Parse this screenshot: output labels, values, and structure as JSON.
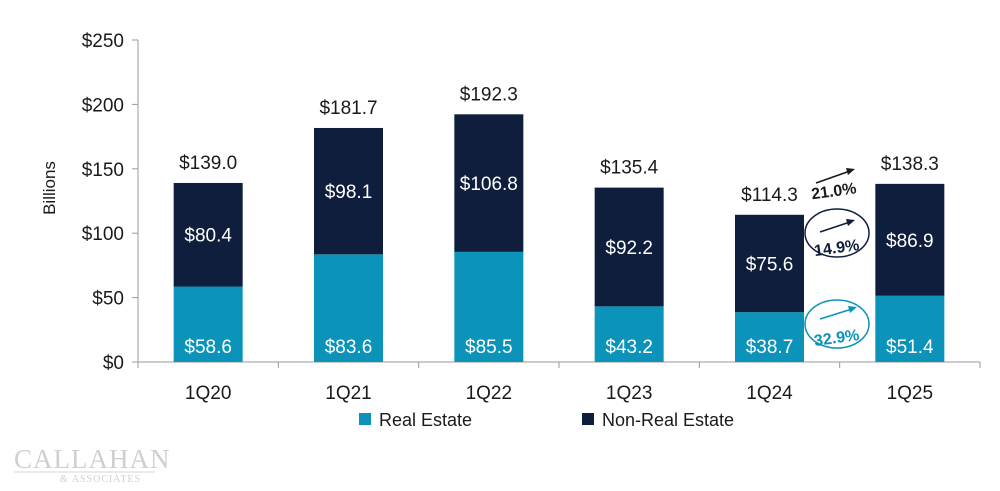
{
  "chart_data": {
    "type": "bar",
    "stacked": true,
    "categories": [
      "1Q20",
      "1Q21",
      "1Q22",
      "1Q23",
      "1Q24",
      "1Q25"
    ],
    "series": [
      {
        "name": "Real Estate",
        "color": "#0B93BA",
        "values": [
          58.6,
          83.6,
          85.5,
          43.2,
          38.7,
          51.4
        ],
        "labels": [
          "$58.6",
          "$83.6",
          "$85.5",
          "$43.2",
          "$38.7",
          "$51.4"
        ]
      },
      {
        "name": "Non-Real Estate",
        "color": "#0F1E3C",
        "values": [
          80.4,
          98.1,
          106.8,
          92.2,
          75.6,
          86.9
        ],
        "labels": [
          "$80.4",
          "$98.1",
          "$106.8",
          "$92.2",
          "$75.6",
          "$86.9"
        ]
      }
    ],
    "totals": [
      139.0,
      181.7,
      192.3,
      135.4,
      114.3,
      138.3
    ],
    "total_labels": [
      "$139.0",
      "$181.7",
      "$192.3",
      "$135.4",
      "$114.3",
      "$138.3"
    ],
    "ylabel": "Billions",
    "ylim": [
      0,
      250
    ],
    "yticks": [
      0,
      50,
      100,
      150,
      200,
      250
    ],
    "ytick_labels": [
      "$0",
      "$50",
      "$100",
      "$150",
      "$200",
      "$250"
    ],
    "legend_position": "bottom-center",
    "annotations": {
      "total_growth": "21.0%",
      "non_real_estate_growth": "14.9%",
      "real_estate_growth": "32.9%"
    }
  },
  "annotation_colors": {
    "total": "#1a1a1a",
    "non_real_estate": "#0F1E3C",
    "real_estate": "#0B93BA"
  },
  "logo": {
    "name": "CALLAHAN",
    "sub": "& ASSOCIATES"
  }
}
